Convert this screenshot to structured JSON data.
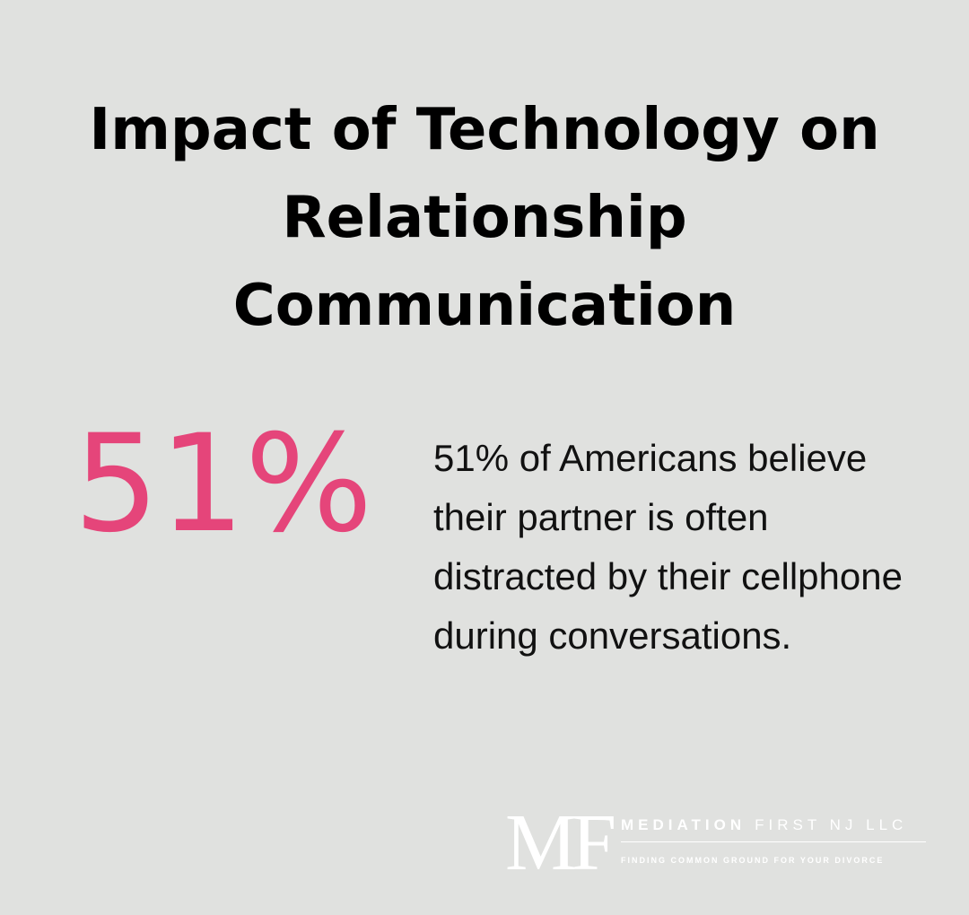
{
  "title": {
    "lines": [
      "Impact of Technology on",
      "Relationship",
      "Communication"
    ]
  },
  "stat": {
    "figure": "51%",
    "description": "51% of Americans believe their partner is often distracted by their cellphone during conversations."
  },
  "logo": {
    "mark": "MF",
    "name_bold": "MEDIATION",
    "name_light": "FIRST NJ LLC",
    "tagline": "FINDING COMMON GROUND FOR YOUR DIVORCE"
  }
}
